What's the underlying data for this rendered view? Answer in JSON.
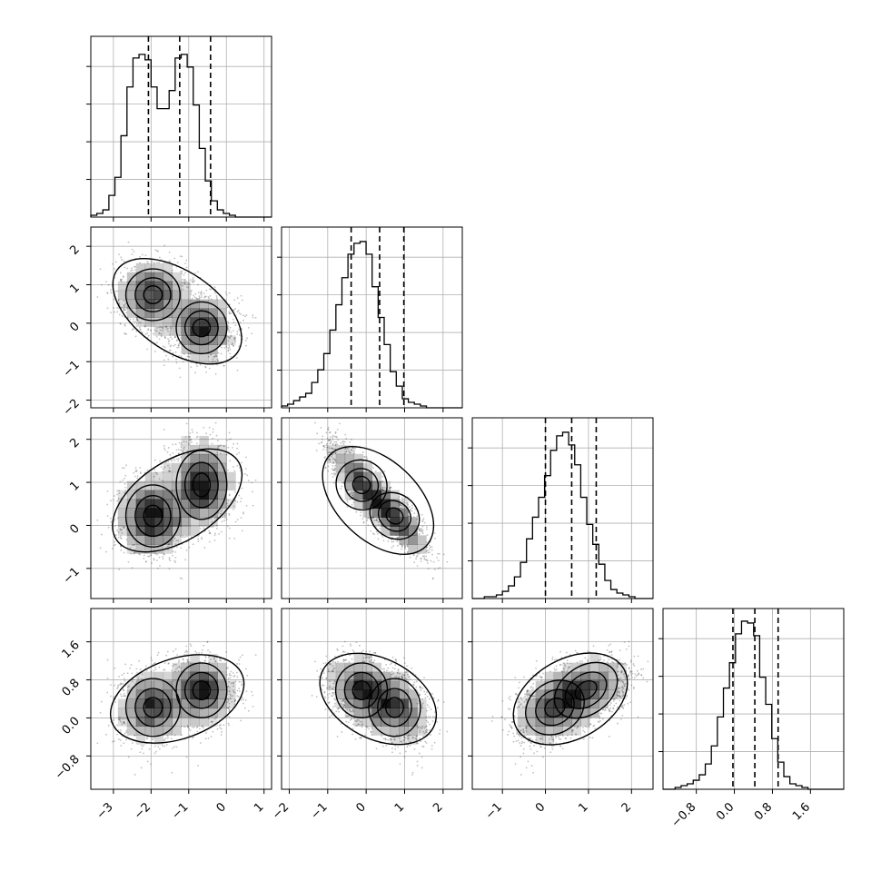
{
  "chart_data": {
    "type": "corner",
    "colors": {
      "line": "#000000",
      "grid": "#b0b0b0",
      "points": "#4d4d4d",
      "density": "#000000"
    },
    "grid": true,
    "params": [
      {
        "range": [
          -3.6,
          1.2
        ],
        "ticks": [
          -3,
          -2,
          -1,
          0,
          1
        ],
        "tick_labels": [
          "−3",
          "−2",
          "−1",
          "0",
          "1"
        ],
        "ylim_range": [
          0,
          1
        ]
      },
      {
        "range": [
          -2.2,
          2.5
        ],
        "ticks": [
          -2,
          -1,
          0,
          1,
          2
        ],
        "tick_labels": [
          "−2",
          "−1",
          "0",
          "1",
          "2"
        ]
      },
      {
        "range": [
          -1.7,
          2.5
        ],
        "ticks": [
          -1,
          0,
          1,
          2
        ],
        "tick_labels": [
          "−1",
          "0",
          "1",
          "2"
        ]
      },
      {
        "range": [
          -1.5,
          2.3
        ],
        "ticks": [
          -0.8,
          0.0,
          0.8,
          1.6
        ],
        "tick_labels": [
          "−0.8",
          "0.0",
          "0.8",
          "1.6"
        ]
      }
    ],
    "histograms": [
      {
        "bin_start": -3.6,
        "bin_width": 0.16,
        "counts": [
          0.01,
          0.02,
          0.04,
          0.12,
          0.22,
          0.45,
          0.72,
          0.88,
          0.9,
          0.87,
          0.72,
          0.6,
          0.6,
          0.7,
          0.88,
          0.9,
          0.83,
          0.62,
          0.38,
          0.2,
          0.09,
          0.04,
          0.02,
          0.01,
          0.0,
          0.0,
          0.0,
          0.0,
          0.0,
          0.0
        ],
        "quantiles": [
          -2.07,
          -1.24,
          -0.42
        ]
      },
      {
        "bin_start": -2.2,
        "bin_width": 0.157,
        "counts": [
          0.01,
          0.02,
          0.04,
          0.06,
          0.08,
          0.14,
          0.21,
          0.3,
          0.43,
          0.57,
          0.72,
          0.85,
          0.91,
          0.92,
          0.85,
          0.67,
          0.5,
          0.35,
          0.2,
          0.12,
          0.05,
          0.03,
          0.02,
          0.01,
          0.0,
          0.0,
          0.0,
          0.0,
          0.0,
          0.0
        ],
        "quantiles": [
          -0.39,
          0.35,
          0.98
        ]
      },
      {
        "bin_start": -1.7,
        "bin_width": 0.14,
        "counts": [
          0.0,
          0.0,
          0.01,
          0.01,
          0.02,
          0.04,
          0.07,
          0.12,
          0.2,
          0.33,
          0.45,
          0.56,
          0.68,
          0.82,
          0.9,
          0.92,
          0.85,
          0.74,
          0.56,
          0.41,
          0.3,
          0.19,
          0.1,
          0.05,
          0.03,
          0.02,
          0.01,
          0.0,
          0.0,
          0.0
        ],
        "quantiles": [
          0.0,
          0.61,
          1.18
        ]
      },
      {
        "bin_start": -1.5,
        "bin_width": 0.127,
        "counts": [
          0.0,
          0.0,
          0.01,
          0.02,
          0.03,
          0.05,
          0.08,
          0.14,
          0.24,
          0.4,
          0.56,
          0.7,
          0.86,
          0.93,
          0.92,
          0.85,
          0.62,
          0.47,
          0.28,
          0.15,
          0.07,
          0.03,
          0.02,
          0.01,
          0.0,
          0.0,
          0.0,
          0.0,
          0.0,
          0.0
        ],
        "quantiles": [
          -0.03,
          0.43,
          0.92
        ]
      }
    ],
    "mixture": [
      {
        "weight": 0.5,
        "mean": [
          -1.95,
          0.74,
          0.22,
          0.22
        ],
        "sd": [
          0.45,
          0.42,
          0.45,
          0.38
        ]
      },
      {
        "weight": 0.5,
        "mean": [
          -0.66,
          -0.12,
          0.94,
          0.58
        ],
        "sd": [
          0.42,
          0.42,
          0.5,
          0.36
        ]
      }
    ],
    "pair_rho": {
      "2-1": -0.82,
      "3-2": 0.35
    }
  }
}
